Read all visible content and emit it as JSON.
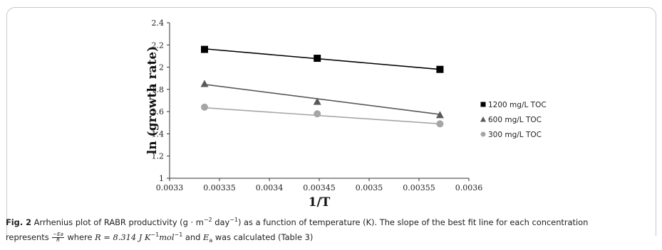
{
  "chart_data": {
    "type": "scatter",
    "ylabel": "ln (growth rate)",
    "xlabel": "1/T",
    "xlim": [
      0.0033,
      0.0036
    ],
    "ylim": [
      1,
      2.4
    ],
    "x_ticks": [
      0.0033,
      0.00335,
      0.0034,
      0.00345,
      0.0035,
      0.00355,
      0.0036
    ],
    "x_tick_labels": [
      "0.0033",
      "0.00335",
      "0.0034",
      "0.00345",
      "0.0035",
      "0.00355",
      "0.0036"
    ],
    "y_ticks": [
      1,
      1.2,
      1.4,
      1.6,
      1.8,
      2,
      2.2,
      2.4
    ],
    "y_tick_labels": [
      "1",
      "1.2",
      "1.4",
      "1.6",
      "1.8",
      "2",
      "2.2",
      "2.4"
    ],
    "grid": false,
    "legend_position": "right",
    "series": [
      {
        "name": "1200 mg/L TOC",
        "marker": "square",
        "color": "#000000",
        "x": [
          0.003335,
          0.003448,
          0.003571
        ],
        "y": [
          2.16,
          2.08,
          1.98
        ],
        "trendline": [
          [
            0.003335,
            2.165
          ],
          [
            0.003571,
            1.98
          ]
        ]
      },
      {
        "name": "600 mg/L TOC",
        "marker": "triangle",
        "color": "#595959",
        "x": [
          0.003335,
          0.003448,
          0.003571
        ],
        "y": [
          1.85,
          1.69,
          1.57
        ],
        "trendline": [
          [
            0.003335,
            1.845
          ],
          [
            0.003571,
            1.575
          ]
        ]
      },
      {
        "name": "300 mg/L TOC",
        "marker": "circle",
        "color": "#a6a6a6",
        "x": [
          0.003335,
          0.003448,
          0.003571
        ],
        "y": [
          1.64,
          1.58,
          1.49
        ],
        "trendline": [
          [
            0.003335,
            1.635
          ],
          [
            0.003571,
            1.49
          ]
        ]
      }
    ]
  },
  "caption": {
    "label": "Fig. 2",
    "text1": " Arrhenius plot of RABR productivity (g · m",
    "sup1": "−2",
    "text2": " day",
    "sup2": "−1",
    "text3": ") as a function of temperature (K). The slope of the best fit line for each concentration",
    "text4": "represents ",
    "frac_num": "−Ea",
    "frac_den": "R",
    "text5": " where ",
    "r_eq": "R = 8.314 J K",
    "sup3": "−1",
    "mol": "mol",
    "sup4": "−1",
    "text6": " and ",
    "ea_sym": "E",
    "ea_sub": "a",
    "text7": " was calculated (Table 3)"
  }
}
